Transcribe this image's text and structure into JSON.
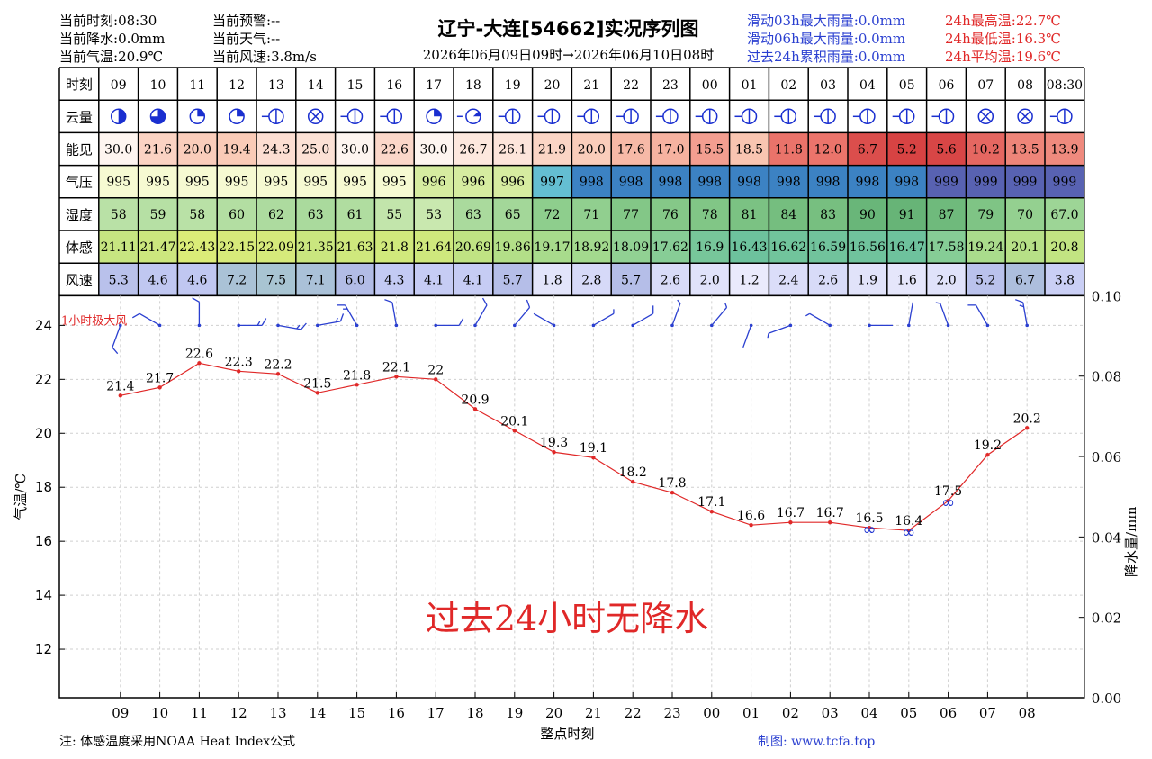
{
  "header": {
    "left": [
      {
        "label": "当前时刻:",
        "value": "08:30"
      },
      {
        "label": "当前降水:",
        "value": "0.0mm"
      },
      {
        "label": "当前气温:",
        "value": "20.9℃"
      }
    ],
    "mid": [
      {
        "label": "当前预警:",
        "value": "--"
      },
      {
        "label": "当前天气:",
        "value": "--"
      },
      {
        "label": "当前风速:",
        "value": "3.8m/s"
      }
    ],
    "rain_stats": [
      {
        "label": "滑动03h最大雨量:",
        "value": "0.0mm"
      },
      {
        "label": "滑动06h最大雨量:",
        "value": "0.0mm"
      },
      {
        "label": "过去24h累积雨量:",
        "value": "0.0mm"
      }
    ],
    "temp_stats": [
      {
        "label": "24h最高温:",
        "value": "22.7℃"
      },
      {
        "label": "24h最低温:",
        "value": "16.3℃"
      },
      {
        "label": "24h平均温:",
        "value": "19.6℃"
      }
    ]
  },
  "title": "辽宁-大连[54662]实况序列图",
  "subtitle": "2026年06月09日09时→2026年06月10日08时",
  "colors": {
    "temp_line": "#e02828",
    "wind_barb": "#2a3fd0",
    "text_blue": "#2a3fd0",
    "text_red": "#e02828"
  },
  "table": {
    "row_labels": [
      "时刻",
      "云量",
      "能见",
      "气压",
      "湿度",
      "体感",
      "风速"
    ],
    "hours": [
      "09",
      "10",
      "11",
      "12",
      "13",
      "14",
      "15",
      "16",
      "17",
      "18",
      "19",
      "20",
      "21",
      "22",
      "23",
      "00",
      "01",
      "02",
      "03",
      "04",
      "05",
      "06",
      "07",
      "08",
      "08:30"
    ],
    "cloud": [
      "half",
      "3q",
      "quarter",
      "quarter",
      "cross",
      "x",
      "cross",
      "cross",
      "quarter",
      "eighth",
      "cross",
      "cross",
      "cross",
      "cross",
      "cross",
      "cross",
      "cross",
      "cross",
      "cross",
      "cross",
      "cross",
      "cross",
      "x",
      "x",
      "cross"
    ],
    "visibility": [
      "30.0",
      "21.6",
      "20.0",
      "19.4",
      "24.3",
      "25.0",
      "30.0",
      "22.6",
      "30.0",
      "26.7",
      "26.1",
      "21.9",
      "20.0",
      "17.6",
      "17.0",
      "15.5",
      "18.5",
      "11.8",
      "12.0",
      "6.7",
      "5.2",
      "5.6",
      "10.2",
      "13.5",
      "13.9"
    ],
    "pressure": [
      "995",
      "995",
      "995",
      "995",
      "995",
      "995",
      "995",
      "995",
      "996",
      "996",
      "996",
      "997",
      "998",
      "998",
      "998",
      "998",
      "998",
      "998",
      "998",
      "998",
      "998",
      "999",
      "999",
      "999",
      "999"
    ],
    "humidity": [
      "58",
      "59",
      "58",
      "60",
      "62",
      "63",
      "61",
      "55",
      "53",
      "63",
      "65",
      "72",
      "71",
      "77",
      "76",
      "78",
      "81",
      "84",
      "83",
      "90",
      "91",
      "87",
      "79",
      "70",
      "67.0"
    ],
    "feels_like": [
      "21.11",
      "21.47",
      "22.43",
      "22.15",
      "22.09",
      "21.35",
      "21.63",
      "21.8",
      "21.64",
      "20.69",
      "19.86",
      "19.17",
      "18.92",
      "18.09",
      "17.62",
      "16.9",
      "16.43",
      "16.62",
      "16.59",
      "16.56",
      "16.47",
      "17.58",
      "19.24",
      "20.1",
      "20.8"
    ],
    "wind_speed": [
      "5.3",
      "4.6",
      "4.6",
      "7.2",
      "7.5",
      "7.1",
      "6.0",
      "4.3",
      "4.1",
      "4.1",
      "5.7",
      "1.8",
      "2.8",
      "5.7",
      "2.6",
      "2.0",
      "1.2",
      "2.4",
      "2.6",
      "1.9",
      "1.6",
      "2.0",
      "5.2",
      "6.7",
      "3.8"
    ]
  },
  "chart_data": {
    "type": "line",
    "x": [
      "09",
      "10",
      "11",
      "12",
      "13",
      "14",
      "15",
      "16",
      "17",
      "18",
      "19",
      "20",
      "21",
      "22",
      "23",
      "00",
      "01",
      "02",
      "03",
      "04",
      "05",
      "06",
      "07",
      "08"
    ],
    "series": [
      {
        "values": [
          21.4,
          21.7,
          22.6,
          22.3,
          22.2,
          21.5,
          21.8,
          22.1,
          22.0,
          20.9,
          20.1,
          19.3,
          19.1,
          18.2,
          17.8,
          17.1,
          16.6,
          16.7,
          16.7,
          16.5,
          16.4,
          17.5,
          19.2,
          20.2
        ]
      }
    ],
    "xlabel": "整点时刻",
    "ylabel": "气温/℃",
    "y2label": "降水量/mm",
    "yticks": [
      "12",
      "14",
      "16",
      "18",
      "20",
      "22",
      "24"
    ],
    "y2ticks": [
      "0.00",
      "0.02",
      "0.04",
      "0.06",
      "0.08",
      "0.10"
    ],
    "ylim": [
      10.2,
      25.1
    ],
    "y2lim": [
      0,
      0.1
    ],
    "grid": true,
    "wind_label": "1小时极大风",
    "wind_dirs": [
      200,
      300,
      360,
      90,
      100,
      80,
      330,
      350,
      90,
      30,
      40,
      300,
      60,
      60,
      20,
      40,
      200,
      250,
      300,
      90,
      10,
      340,
      330,
      350
    ],
    "fog_marks_at": [
      "04",
      "05",
      "06"
    ],
    "annotation": "过去24小时无降水"
  },
  "footer": {
    "note": "注: 体感温度采用NOAA Heat Index公式",
    "credit": "制图: www.tcfa.top"
  }
}
